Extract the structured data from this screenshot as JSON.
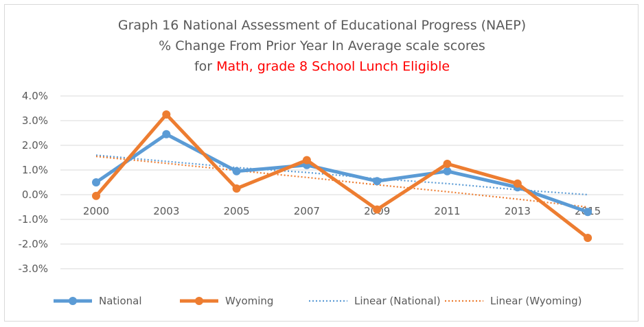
{
  "chart_data": {
    "type": "line",
    "title": "Graph 16 National Assessment of Educational Progress (NAEP)",
    "subtitle": "% Change From Prior Year In Average scale scores",
    "subtitle2_prefix": "for ",
    "subtitle2_highlight": "Math, grade 8 School Lunch Eligible",
    "categories": [
      "2000",
      "2003",
      "2005",
      "2007",
      "2009",
      "2011",
      "2013",
      "2015"
    ],
    "y_ticks": [
      "4.0%",
      "3.0%",
      "2.0%",
      "1.0%",
      "0.0%",
      "-1.0%",
      "-2.0%",
      "-3.0%"
    ],
    "ylim": [
      -3,
      4
    ],
    "grid": true,
    "legend_position": "bottom",
    "series": [
      {
        "name": "National",
        "values": [
          0.5,
          2.45,
          0.95,
          1.2,
          0.55,
          0.95,
          0.3,
          -0.7
        ],
        "color": "#5b9bd5",
        "kind": "line"
      },
      {
        "name": "Wyoming",
        "values": [
          -0.05,
          3.25,
          0.25,
          1.4,
          -0.6,
          1.25,
          0.45,
          -1.75
        ],
        "color": "#ed7d31",
        "kind": "line"
      },
      {
        "name": "Linear (National)",
        "values": [
          1.6,
          1.35,
          1.1,
          0.9,
          0.65,
          0.45,
          0.2,
          0.0
        ],
        "color": "#5b9bd5",
        "kind": "trend"
      },
      {
        "name": "Linear (Wyoming)",
        "values": [
          1.55,
          1.27,
          0.98,
          0.7,
          0.4,
          0.12,
          -0.18,
          -0.5
        ],
        "color": "#ed7d31",
        "kind": "trend"
      }
    ]
  }
}
